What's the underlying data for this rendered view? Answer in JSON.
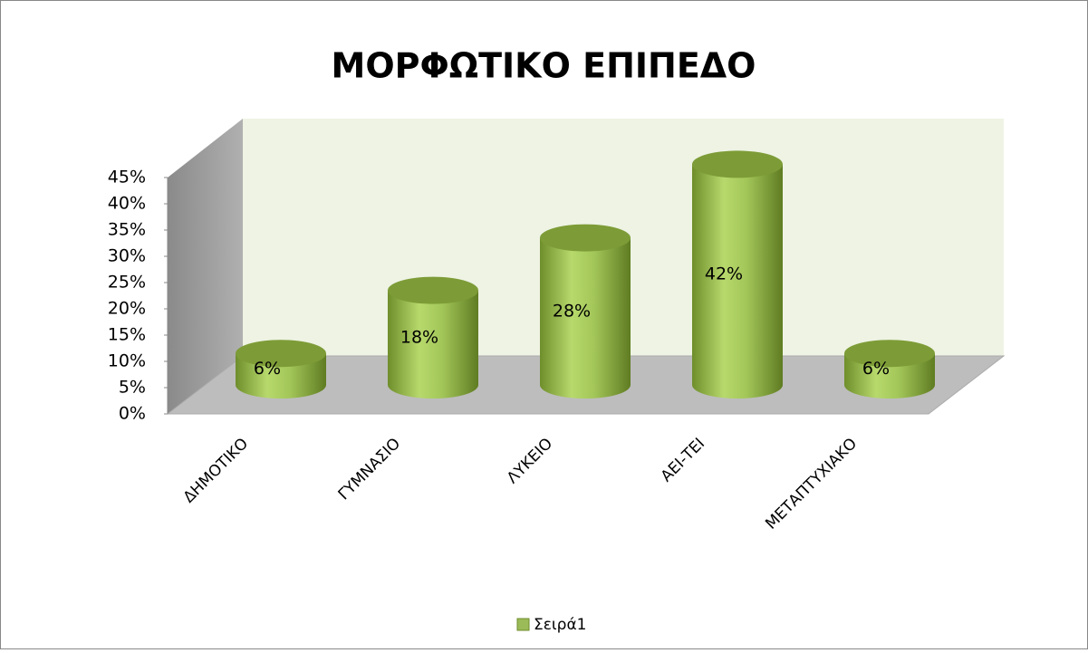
{
  "chart_data": {
    "type": "bar",
    "title": "ΜΟΡΦΩΤΙΚΟ ΕΠΙΠΕΔΟ",
    "categories": [
      "ΔΗΜΟΤΙΚΟ",
      "ΓΥΜΝΑΣΙΟ",
      "ΛΥΚΕΙΟ",
      "ΑΕΙ-ΤΕΙ",
      "ΜΕΤΑΠΤΥΧΙΑΚΟ"
    ],
    "series": [
      {
        "name": "Σειρά1",
        "color": "#9bbb59",
        "values": [
          6,
          18,
          28,
          42,
          6
        ],
        "value_labels": [
          "6%",
          "18%",
          "28%",
          "42%",
          "6%"
        ]
      }
    ],
    "ylim": [
      0,
      45
    ],
    "yticks": [
      {
        "value": 0,
        "label": "0%"
      },
      {
        "value": 5,
        "label": "5%"
      },
      {
        "value": 10,
        "label": "10%"
      },
      {
        "value": 15,
        "label": "15%"
      },
      {
        "value": 20,
        "label": "20%"
      },
      {
        "value": 25,
        "label": "25%"
      },
      {
        "value": 30,
        "label": "30%"
      },
      {
        "value": 35,
        "label": "35%"
      },
      {
        "value": 40,
        "label": "40%"
      },
      {
        "value": 45,
        "label": "45%"
      }
    ],
    "legend": "bottom"
  }
}
